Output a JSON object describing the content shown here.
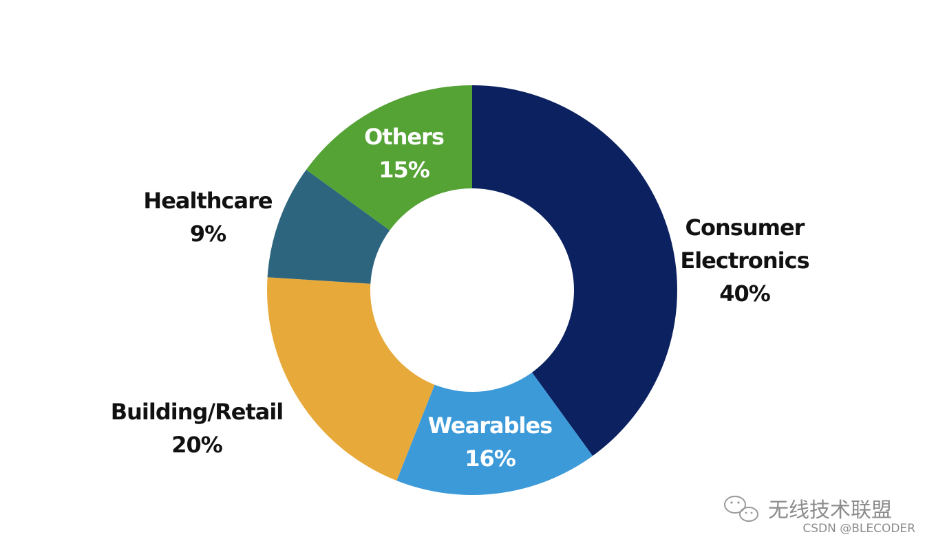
{
  "chart_data": {
    "type": "pie",
    "donut": true,
    "legend": "none",
    "slices": [
      {
        "name": "Consumer\nElectronics",
        "value": 40,
        "label_value": "40%",
        "color": "#0b2160",
        "label_color": "dark"
      },
      {
        "name": "Wearables",
        "value": 16,
        "label_value": "16%",
        "color": "#3d9ad9",
        "label_color": "light"
      },
      {
        "name": "Building/Retail",
        "value": 20,
        "label_value": "20%",
        "color": "#e7a93a",
        "label_color": "dark"
      },
      {
        "name": "Healthcare",
        "value": 9,
        "label_value": "9%",
        "color": "#2d657f",
        "label_color": "dark"
      },
      {
        "name": "Others",
        "value": 15,
        "label_value": "15%",
        "color": "#55a235",
        "label_color": "light"
      }
    ]
  },
  "watermark": {
    "brand": "无线技术联盟",
    "credit": "CSDN @BLECODER",
    "icon": "wechat-icon"
  }
}
